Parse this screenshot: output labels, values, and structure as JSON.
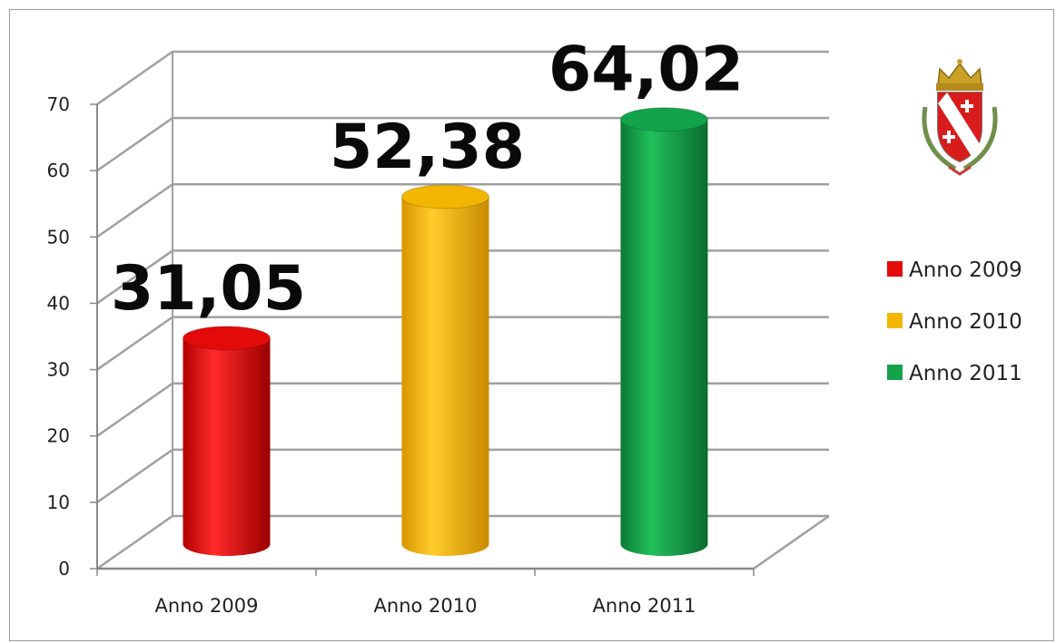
{
  "chart_data": {
    "type": "bar",
    "style": "3d-cylinder",
    "categories": [
      "Anno 2009",
      "Anno 2010",
      "Anno 2011"
    ],
    "values": [
      31.05,
      52.38,
      64.02
    ],
    "data_labels": [
      "31,05",
      "52,38",
      "64,02"
    ],
    "colors": [
      "#e30a0a",
      "#f2b600",
      "#13a34a"
    ],
    "ylim": [
      0,
      70
    ],
    "yticks": [
      0,
      10,
      20,
      30,
      40,
      50,
      60,
      70
    ],
    "grid": true,
    "legend": {
      "position": "right",
      "entries": [
        "Anno 2009",
        "Anno 2010",
        "Anno 2011"
      ]
    }
  },
  "logo": {
    "icon": "municipal-coat-of-arms-icon"
  }
}
